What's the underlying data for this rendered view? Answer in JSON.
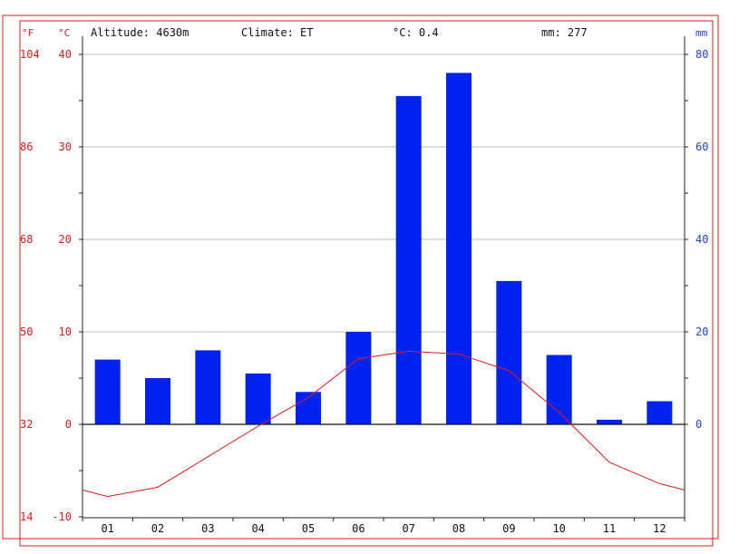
{
  "header": {
    "altitude": "Altitude: 4630m",
    "climate": "Climate: ET",
    "temp": "°C: 0.4",
    "precip": "mm: 277"
  },
  "units": {
    "f": "°F",
    "c": "°C",
    "mm": "mm"
  },
  "colors": {
    "temp": "#e01b1b",
    "precip": "#0022ee",
    "frame": "#e01b1b",
    "grid": "#bdbdbd"
  },
  "chart_data": {
    "type": "bar",
    "categories": [
      "01",
      "02",
      "03",
      "04",
      "05",
      "06",
      "07",
      "08",
      "09",
      "10",
      "11",
      "12"
    ],
    "series": [
      {
        "axis": "right",
        "unit": "mm",
        "values": [
          14,
          10,
          16,
          11,
          7,
          20,
          71,
          76,
          31,
          15,
          1,
          5
        ]
      },
      {
        "type": "line",
        "axis": "left",
        "unit": "°C",
        "values": [
          -7.8,
          -6.8,
          -3.5,
          -0.2,
          2.9,
          7.1,
          7.9,
          7.6,
          5.8,
          1.3,
          -4.1,
          -6.4
        ]
      }
    ],
    "temp_line_edge": {
      "jan_start": -7.1,
      "dec_end": -7.1
    },
    "left_axis_c": {
      "ylim": [
        -10,
        40
      ],
      "ticks": [
        "-10",
        "0",
        "10",
        "20",
        "30",
        "40"
      ]
    },
    "left_axis_f": {
      "ticks": [
        "14",
        "32",
        "50",
        "68",
        "86",
        "104"
      ]
    },
    "right_axis_mm": {
      "ylim": [
        0,
        80
      ],
      "ticks": [
        "0",
        "20",
        "40",
        "60",
        "80"
      ]
    },
    "grid": true
  }
}
